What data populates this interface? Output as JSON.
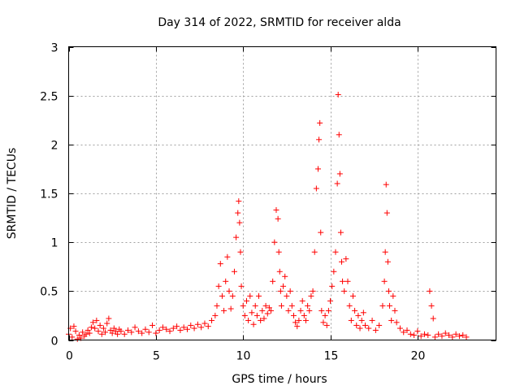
{
  "chart_data": {
    "type": "scatter",
    "title": "Day 314 of 2022, SRMTID for receiver alda",
    "xlabel": "GPS time / hours",
    "ylabel": "SRMTID / TECUs",
    "xlim": [
      0,
      24.5
    ],
    "ylim": [
      0,
      3
    ],
    "xticks": [
      0,
      5,
      10,
      15,
      20
    ],
    "xtick_labels": [
      "0",
      "5",
      "10",
      "15",
      "20"
    ],
    "yticks": [
      0,
      0.5,
      1,
      1.5,
      2,
      2.5,
      3
    ],
    "ytick_labels": [
      "0",
      "0.5",
      "1",
      "1.5",
      "2",
      "2.5",
      "3"
    ],
    "grid": true,
    "marker": "+",
    "color": "#ff0000",
    "series": [
      {
        "name": "SRMTID",
        "x": [
          0.0,
          0.1,
          0.2,
          0.3,
          0.4,
          0.5,
          0.6,
          0.7,
          0.8,
          0.9,
          1.0,
          1.1,
          1.2,
          1.3,
          1.4,
          1.5,
          1.6,
          1.7,
          1.8,
          1.9,
          2.0,
          2.1,
          2.2,
          2.3,
          2.4,
          2.5,
          2.6,
          2.7,
          2.8,
          2.9,
          3.0,
          3.2,
          3.4,
          3.6,
          3.8,
          4.0,
          4.2,
          4.4,
          4.6,
          4.8,
          5.0,
          5.2,
          5.4,
          5.6,
          5.8,
          6.0,
          6.2,
          6.4,
          6.6,
          6.8,
          7.0,
          7.2,
          7.4,
          7.6,
          7.8,
          8.0,
          8.2,
          8.4,
          8.5,
          8.6,
          8.7,
          8.8,
          8.9,
          9.0,
          9.1,
          9.2,
          9.3,
          9.4,
          9.5,
          9.6,
          9.7,
          9.75,
          9.8,
          9.85,
          9.9,
          10.0,
          10.1,
          10.2,
          10.3,
          10.4,
          10.5,
          10.6,
          10.7,
          10.8,
          10.9,
          11.0,
          11.1,
          11.2,
          11.3,
          11.4,
          11.5,
          11.6,
          11.7,
          11.8,
          11.9,
          12.0,
          12.05,
          12.1,
          12.15,
          12.2,
          12.3,
          12.4,
          12.5,
          12.6,
          12.7,
          12.8,
          12.9,
          13.0,
          13.1,
          13.2,
          13.3,
          13.4,
          13.5,
          13.6,
          13.7,
          13.8,
          13.9,
          14.0,
          14.1,
          14.2,
          14.3,
          14.35,
          14.4,
          14.45,
          14.5,
          14.6,
          14.7,
          14.8,
          14.9,
          15.0,
          15.1,
          15.2,
          15.3,
          15.4,
          15.45,
          15.5,
          15.55,
          15.6,
          15.65,
          15.7,
          15.8,
          15.9,
          16.0,
          16.1,
          16.2,
          16.3,
          16.4,
          16.5,
          16.6,
          16.7,
          16.8,
          16.9,
          17.0,
          17.2,
          17.4,
          17.6,
          17.8,
          18.0,
          18.1,
          18.15,
          18.2,
          18.25,
          18.3,
          18.35,
          18.4,
          18.5,
          18.6,
          18.7,
          18.8,
          19.0,
          19.2,
          19.4,
          19.6,
          19.8,
          20.0,
          20.2,
          20.4,
          20.6,
          20.7,
          20.8,
          20.9,
          21.0,
          21.2,
          21.4,
          21.6,
          21.8,
          22.0,
          22.2,
          22.4,
          22.6,
          22.8
        ],
        "y": [
          0.06,
          0.12,
          0.03,
          0.14,
          0.09,
          0.01,
          0.05,
          0.02,
          0.08,
          0.04,
          0.06,
          0.1,
          0.07,
          0.13,
          0.18,
          0.12,
          0.2,
          0.09,
          0.15,
          0.06,
          0.12,
          0.08,
          0.17,
          0.22,
          0.1,
          0.07,
          0.12,
          0.09,
          0.06,
          0.11,
          0.09,
          0.06,
          0.1,
          0.08,
          0.13,
          0.09,
          0.07,
          0.11,
          0.08,
          0.15,
          0.07,
          0.1,
          0.13,
          0.11,
          0.09,
          0.12,
          0.14,
          0.1,
          0.13,
          0.11,
          0.15,
          0.12,
          0.16,
          0.13,
          0.17,
          0.14,
          0.2,
          0.25,
          0.35,
          0.55,
          0.78,
          0.45,
          0.3,
          0.6,
          0.85,
          0.5,
          0.32,
          0.45,
          0.7,
          1.05,
          1.3,
          1.42,
          1.2,
          0.9,
          0.55,
          0.35,
          0.25,
          0.4,
          0.2,
          0.45,
          0.28,
          0.16,
          0.35,
          0.25,
          0.45,
          0.2,
          0.3,
          0.22,
          0.35,
          0.27,
          0.33,
          0.3,
          0.6,
          1.0,
          1.33,
          1.24,
          0.9,
          0.7,
          0.5,
          0.35,
          0.55,
          0.65,
          0.45,
          0.3,
          0.5,
          0.35,
          0.25,
          0.18,
          0.14,
          0.2,
          0.3,
          0.4,
          0.25,
          0.2,
          0.35,
          0.3,
          0.45,
          0.5,
          0.9,
          1.55,
          1.75,
          2.05,
          2.22,
          1.1,
          0.3,
          0.18,
          0.25,
          0.15,
          0.3,
          0.4,
          0.55,
          0.7,
          0.9,
          1.6,
          2.51,
          2.1,
          1.7,
          1.1,
          0.8,
          0.6,
          0.5,
          0.83,
          0.6,
          0.35,
          0.2,
          0.45,
          0.3,
          0.15,
          0.25,
          0.12,
          0.2,
          0.28,
          0.15,
          0.12,
          0.2,
          0.1,
          0.15,
          0.35,
          0.6,
          0.9,
          1.59,
          1.3,
          0.8,
          0.5,
          0.35,
          0.2,
          0.45,
          0.3,
          0.18,
          0.12,
          0.08,
          0.1,
          0.06,
          0.05,
          0.09,
          0.04,
          0.06,
          0.05,
          0.5,
          0.35,
          0.22,
          0.03,
          0.06,
          0.04,
          0.07,
          0.05,
          0.03,
          0.06,
          0.04,
          0.05,
          0.03
        ]
      }
    ]
  }
}
